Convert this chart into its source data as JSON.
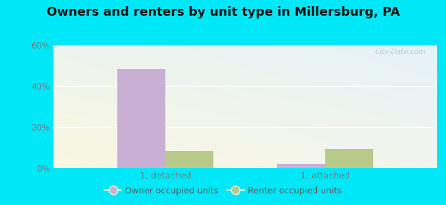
{
  "title": "Owners and renters by unit type in Millersburg, PA",
  "categories": [
    "1, detached",
    "1, attached"
  ],
  "owner_values": [
    48.5,
    2.0
  ],
  "renter_values": [
    8.5,
    9.5
  ],
  "owner_color": "#c9afd4",
  "renter_color": "#b8c98a",
  "background_color": "#00e8f8",
  "ylim": [
    0,
    60
  ],
  "yticks": [
    0,
    20,
    40,
    60
  ],
  "ytick_labels": [
    "0%",
    "20%",
    "40%",
    "60%"
  ],
  "bar_width": 0.3,
  "legend_labels": [
    "Owner occupied units",
    "Renter occupied units"
  ],
  "title_fontsize": 13,
  "tick_fontsize": 9,
  "legend_fontsize": 9,
  "watermark": "City-Data.com"
}
